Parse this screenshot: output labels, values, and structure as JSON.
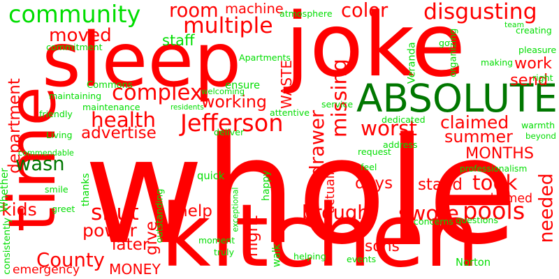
{
  "colors": {
    "negative": "#ff0000",
    "positive": "#00dd00",
    "accent": "#007700",
    "background": "#ffffff"
  },
  "words": [
    {
      "text": "joke",
      "color": "negative"
    },
    {
      "text": "whole",
      "color": "negative"
    },
    {
      "text": "kitchen",
      "color": "negative"
    },
    {
      "text": "time",
      "color": "negative"
    },
    {
      "text": "sleep",
      "color": "negative"
    },
    {
      "text": "ABSOLUTE",
      "color": "accent"
    },
    {
      "text": "community",
      "color": "positive"
    },
    {
      "text": "disgusting",
      "color": "negative"
    },
    {
      "text": "Jefferson",
      "color": "negative"
    },
    {
      "text": "complex",
      "color": "negative"
    },
    {
      "text": "multiple",
      "color": "negative"
    },
    {
      "text": "moved",
      "color": "negative"
    },
    {
      "text": "room",
      "color": "negative"
    },
    {
      "text": "machine",
      "color": "negative"
    },
    {
      "text": "color",
      "color": "negative"
    },
    {
      "text": "department",
      "color": "negative"
    },
    {
      "text": "health",
      "color": "negative"
    },
    {
      "text": "working",
      "color": "negative"
    },
    {
      "text": "drawer",
      "color": "negative"
    },
    {
      "text": "missing",
      "color": "negative"
    },
    {
      "text": "claimed",
      "color": "negative"
    },
    {
      "text": "worst",
      "color": "negative"
    },
    {
      "text": "summer",
      "color": "negative"
    },
    {
      "text": "MONTHS",
      "color": "negative"
    },
    {
      "text": "took",
      "color": "negative"
    },
    {
      "text": "wasn",
      "color": "accent"
    },
    {
      "text": "advertise",
      "color": "negative"
    },
    {
      "text": "actually",
      "color": "negative"
    },
    {
      "text": "days",
      "color": "negative"
    },
    {
      "text": "stand",
      "color": "negative"
    },
    {
      "text": "ashamed",
      "color": "negative"
    },
    {
      "text": "pools",
      "color": "negative"
    },
    {
      "text": "needed",
      "color": "negative"
    },
    {
      "text": "kids",
      "color": "negative"
    },
    {
      "text": "shut",
      "color": "negative"
    },
    {
      "text": "help",
      "color": "negative"
    },
    {
      "text": "brought",
      "color": "negative"
    },
    {
      "text": "swore",
      "color": "negative"
    },
    {
      "text": "power",
      "color": "negative"
    },
    {
      "text": "give",
      "color": "negative"
    },
    {
      "text": "night",
      "color": "negative"
    },
    {
      "text": "later",
      "color": "negative"
    },
    {
      "text": "County",
      "color": "negative"
    },
    {
      "text": "emergency",
      "color": "negative"
    },
    {
      "text": "MONEY",
      "color": "negative"
    },
    {
      "text": "sons",
      "color": "negative"
    },
    {
      "text": "work",
      "color": "negative"
    },
    {
      "text": "send",
      "color": "negative"
    },
    {
      "text": "WASTE",
      "color": "negative"
    },
    {
      "text": "Veranda",
      "color": "positive"
    },
    {
      "text": "staff",
      "color": "positive"
    },
    {
      "text": "Apartments",
      "color": "positive"
    },
    {
      "text": "atmosphere",
      "color": "positive"
    },
    {
      "text": "team",
      "color": "positive"
    },
    {
      "text": "creating",
      "color": "positive"
    },
    {
      "text": "pleasure",
      "color": "positive"
    },
    {
      "text": "go",
      "color": "positive"
    },
    {
      "text": "organizing",
      "color": "positive"
    },
    {
      "text": "making",
      "color": "positive"
    },
    {
      "text": "right",
      "color": "positive"
    },
    {
      "text": "commitment",
      "color": "positive"
    },
    {
      "text": "Commons",
      "color": "positive"
    },
    {
      "text": "ensure",
      "color": "positive"
    },
    {
      "text": "welcoming",
      "color": "positive"
    },
    {
      "text": "maintaining",
      "color": "positive"
    },
    {
      "text": "maintenance",
      "color": "positive"
    },
    {
      "text": "residents",
      "color": "positive"
    },
    {
      "text": "attentive",
      "color": "positive"
    },
    {
      "text": "service",
      "color": "positive"
    },
    {
      "text": "friendly",
      "color": "positive"
    },
    {
      "text": "dedicated",
      "color": "positive"
    },
    {
      "text": "warmth",
      "color": "positive"
    },
    {
      "text": "beyond",
      "color": "positive"
    },
    {
      "text": "Living",
      "color": "positive"
    },
    {
      "text": "deliver",
      "color": "positive"
    },
    {
      "text": "address",
      "color": "positive"
    },
    {
      "text": "request",
      "color": "positive"
    },
    {
      "text": "commendable",
      "color": "positive"
    },
    {
      "text": "feel",
      "color": "positive"
    },
    {
      "text": "professionalism",
      "color": "positive"
    },
    {
      "text": "Whether",
      "color": "positive"
    },
    {
      "text": "thanks",
      "color": "positive"
    },
    {
      "text": "quick",
      "color": "positive"
    },
    {
      "text": "happy",
      "color": "positive"
    },
    {
      "text": "smile",
      "color": "positive"
    },
    {
      "text": "greet",
      "color": "positive"
    },
    {
      "text": "exceptional",
      "color": "positive"
    },
    {
      "text": "outstanding",
      "color": "positive"
    },
    {
      "text": "consistently",
      "color": "positive"
    },
    {
      "text": "moment",
      "color": "positive"
    },
    {
      "text": "truly",
      "color": "positive"
    },
    {
      "text": "walk",
      "color": "positive"
    },
    {
      "text": "helping",
      "color": "positive"
    },
    {
      "text": "events",
      "color": "positive"
    },
    {
      "text": "concerns",
      "color": "positive"
    },
    {
      "text": "questions",
      "color": "positive"
    },
    {
      "text": "Norton",
      "color": "positive"
    }
  ]
}
